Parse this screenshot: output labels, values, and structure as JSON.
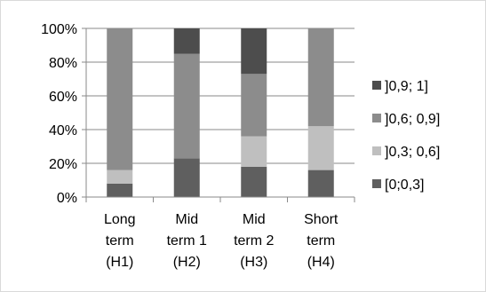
{
  "chart_data": {
    "type": "bar",
    "stacked": true,
    "percent": true,
    "title": "",
    "xlabel": "",
    "ylabel": "",
    "ylim": [
      0,
      100
    ],
    "yticks": [
      "0%",
      "20%",
      "40%",
      "60%",
      "80%",
      "100%"
    ],
    "categories": [
      [
        "Long",
        "term",
        "(H1)"
      ],
      [
        "Mid",
        "term 1",
        "(H2)"
      ],
      [
        "Mid",
        "term 2",
        "(H3)"
      ],
      [
        "Short",
        "term",
        "(H4)"
      ]
    ],
    "series": [
      {
        "name": "[0;0,3]",
        "color": "#5f5f5f",
        "values": [
          8,
          23,
          18,
          16
        ]
      },
      {
        "name": "]0,3; 0,6]",
        "color": "#bfbfbf",
        "values": [
          8,
          0,
          18,
          26
        ]
      },
      {
        "name": "]0,6; 0,9]",
        "color": "#8c8c8c",
        "values": [
          84,
          62,
          37,
          58
        ]
      },
      {
        "name": "]0,9; 1]",
        "color": "#4d4d4d",
        "values": [
          0,
          15,
          27,
          0
        ]
      }
    ],
    "legend_order": [
      3,
      2,
      1,
      0
    ],
    "legend_position": "right",
    "grid": true
  }
}
